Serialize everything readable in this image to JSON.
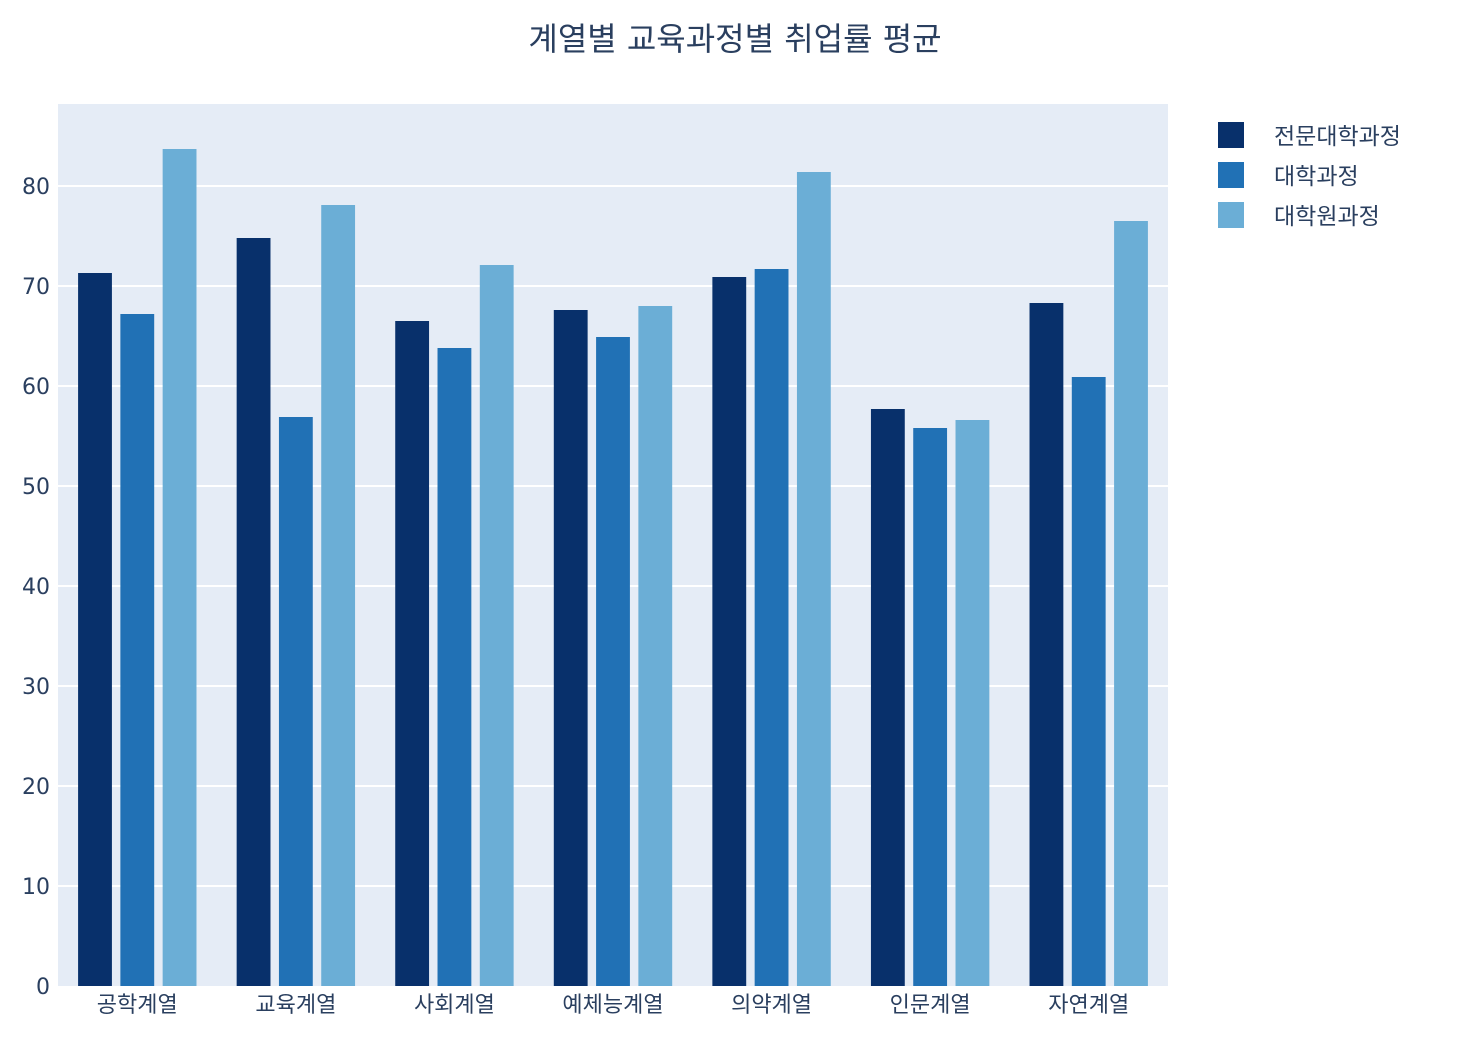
{
  "chart_data": {
    "type": "bar",
    "title": "계열별 교육과정별 취업률 평균",
    "xlabel": "",
    "ylabel": "",
    "categories": [
      "공학계열",
      "교육계열",
      "사회계열",
      "예체능계열",
      "의약계열",
      "인문계열",
      "자연계열"
    ],
    "series": [
      {
        "name": "전문대학과정",
        "color": "#08306b",
        "values": [
          71.3,
          74.8,
          66.5,
          67.6,
          70.9,
          57.7,
          68.3
        ]
      },
      {
        "name": "대학과정",
        "color": "#2171b5",
        "values": [
          67.2,
          56.9,
          63.8,
          64.9,
          71.7,
          55.8,
          60.9
        ]
      },
      {
        "name": "대학원과정",
        "color": "#6baed6",
        "values": [
          83.7,
          78.1,
          72.1,
          68.0,
          81.4,
          56.6,
          76.5
        ]
      }
    ],
    "ylim": [
      0,
      88.2
    ],
    "yticks": [
      0,
      10,
      20,
      30,
      40,
      50,
      60,
      70,
      80
    ],
    "grid": true,
    "legend_position": "top-right",
    "plot_background": "#e5ecf6",
    "text_color": "#2a3f5f"
  }
}
